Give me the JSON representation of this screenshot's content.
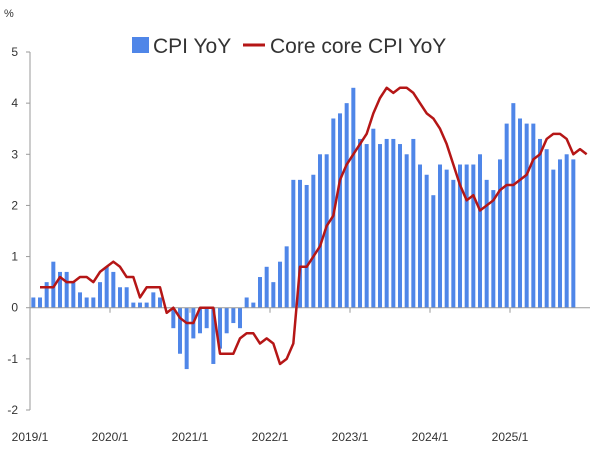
{
  "chart_data": {
    "type": "bar+line",
    "ylabel": "%",
    "ylim": [
      -2,
      5
    ],
    "yticks": [
      5,
      4,
      3,
      2,
      1,
      0,
      -1,
      -2
    ],
    "x_start": "2019/1",
    "n_months": 84,
    "xtick_labels": [
      "2019/1",
      "2020/1",
      "2021/1",
      "2022/1",
      "2023/1",
      "2024/1",
      "2025/1"
    ],
    "gridlines": false,
    "legend_position": "top",
    "colors": {
      "bar": "#4f86e8",
      "line": "#b51616",
      "axis": "#9a9a9a",
      "text": "#333333"
    },
    "series": [
      {
        "name": "CPI YoY",
        "kind": "bar",
        "values": [
          0.2,
          0.2,
          0.5,
          0.9,
          0.7,
          0.7,
          0.5,
          0.3,
          0.2,
          0.2,
          0.5,
          0.8,
          0.7,
          0.4,
          0.4,
          0.1,
          0.1,
          0.1,
          0.3,
          0.2,
          0.0,
          -0.4,
          -0.9,
          -1.2,
          -0.6,
          -0.5,
          -0.4,
          -1.1,
          -0.8,
          -0.5,
          -0.3,
          -0.4,
          0.2,
          0.1,
          0.6,
          0.8,
          0.5,
          0.9,
          1.2,
          2.5,
          2.5,
          2.4,
          2.6,
          3.0,
          3.0,
          3.7,
          3.8,
          4.0,
          4.3,
          3.3,
          3.2,
          3.5,
          3.2,
          3.3,
          3.3,
          3.2,
          3.0,
          3.3,
          2.8,
          2.6,
          2.2,
          2.8,
          2.7,
          2.5,
          2.8,
          2.8,
          2.8,
          3.0,
          2.5,
          2.3,
          2.9,
          3.6,
          4.0,
          3.7,
          3.6,
          3.6,
          3.3,
          3.1,
          2.7,
          2.9,
          3.0,
          2.9
        ],
        "start_index": 0
      },
      {
        "name": "Core core CPI YoY",
        "kind": "line",
        "values": [
          0.4,
          0.4,
          0.4,
          0.6,
          0.5,
          0.5,
          0.6,
          0.6,
          0.5,
          0.7,
          0.8,
          0.9,
          0.8,
          0.6,
          0.6,
          0.2,
          0.4,
          0.4,
          0.4,
          -0.1,
          0.0,
          -0.2,
          -0.3,
          -0.3,
          0.0,
          0.0,
          0.0,
          -0.9,
          -0.9,
          -0.9,
          -0.6,
          -0.5,
          -0.5,
          -0.7,
          -0.6,
          -0.7,
          -1.1,
          -1.0,
          -0.7,
          0.8,
          0.8,
          1.0,
          1.2,
          1.6,
          1.8,
          2.5,
          2.8,
          3.0,
          3.2,
          3.4,
          3.8,
          4.1,
          4.3,
          4.2,
          4.3,
          4.3,
          4.2,
          4.0,
          3.8,
          3.7,
          3.5,
          3.2,
          2.8,
          2.4,
          2.1,
          2.2,
          1.9,
          2.0,
          2.1,
          2.3,
          2.4,
          2.4,
          2.5,
          2.6,
          2.9,
          3.0,
          3.3,
          3.4,
          3.4,
          3.3,
          3.0,
          3.1,
          3.0
        ],
        "start_index": 1
      }
    ]
  }
}
